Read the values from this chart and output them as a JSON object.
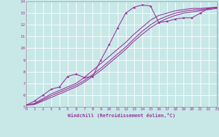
{
  "xlabel": "Windchill (Refroidissement éolien,°C)",
  "xlim": [
    0,
    23
  ],
  "ylim": [
    5,
    14
  ],
  "xticks": [
    0,
    1,
    2,
    3,
    4,
    5,
    6,
    7,
    8,
    9,
    10,
    11,
    12,
    13,
    14,
    15,
    16,
    17,
    18,
    19,
    20,
    21,
    22,
    23
  ],
  "yticks": [
    5,
    6,
    7,
    8,
    9,
    10,
    11,
    12,
    13,
    14
  ],
  "bg_color": "#c8e8e8",
  "line_color": "#993399",
  "grid_color": "#ffffff",
  "line1_x": [
    0,
    1,
    2,
    3,
    4,
    5,
    6,
    7,
    8,
    9,
    10,
    11,
    12,
    13,
    14,
    15,
    16,
    17,
    18,
    19,
    20,
    21,
    22,
    23
  ],
  "line1_y": [
    5.15,
    5.5,
    6.0,
    6.5,
    6.7,
    7.6,
    7.8,
    7.5,
    7.6,
    9.0,
    10.3,
    11.7,
    13.0,
    13.5,
    13.7,
    13.6,
    12.2,
    12.3,
    12.5,
    12.6,
    12.6,
    13.0,
    13.4,
    13.5
  ],
  "line2_x": [
    0,
    1,
    2,
    3,
    4,
    5,
    6,
    7,
    8,
    9,
    10,
    11,
    12,
    13,
    14,
    15,
    16,
    17,
    18,
    19,
    20,
    21,
    22,
    23
  ],
  "line2_y": [
    5.15,
    5.3,
    5.7,
    6.1,
    6.4,
    6.7,
    7.0,
    7.5,
    8.1,
    8.7,
    9.3,
    9.9,
    10.5,
    11.2,
    11.8,
    12.4,
    12.8,
    13.0,
    13.2,
    13.3,
    13.4,
    13.4,
    13.45,
    13.5
  ],
  "line3_x": [
    0,
    1,
    2,
    3,
    4,
    5,
    6,
    7,
    8,
    9,
    10,
    11,
    12,
    13,
    14,
    15,
    16,
    17,
    18,
    19,
    20,
    21,
    22,
    23
  ],
  "line3_y": [
    5.15,
    5.25,
    5.6,
    5.95,
    6.25,
    6.55,
    6.85,
    7.25,
    7.75,
    8.3,
    8.9,
    9.5,
    10.1,
    10.8,
    11.45,
    12.0,
    12.45,
    12.75,
    13.0,
    13.15,
    13.25,
    13.3,
    13.4,
    13.45
  ],
  "line4_x": [
    0,
    1,
    2,
    3,
    4,
    5,
    6,
    7,
    8,
    9,
    10,
    11,
    12,
    13,
    14,
    15,
    16,
    17,
    18,
    19,
    20,
    21,
    22,
    23
  ],
  "line4_y": [
    5.15,
    5.2,
    5.5,
    5.8,
    6.1,
    6.4,
    6.7,
    7.1,
    7.6,
    8.1,
    8.7,
    9.3,
    9.9,
    10.6,
    11.2,
    11.75,
    12.2,
    12.55,
    12.8,
    13.0,
    13.1,
    13.2,
    13.3,
    13.4
  ]
}
